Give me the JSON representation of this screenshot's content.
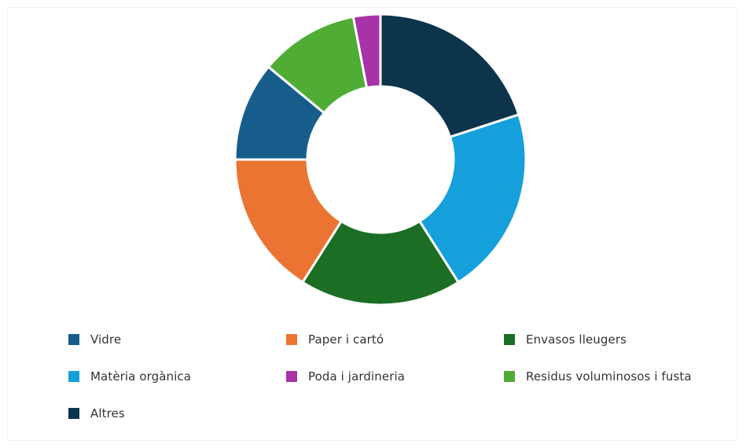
{
  "chart_data": {
    "type": "pie",
    "donut": true,
    "categories": [
      "Vidre",
      "Paper i cartó",
      "Envasos lleugers",
      "Matèria orgànica",
      "Poda i jardineria",
      "Residus voluminosos i fusta",
      "Altres"
    ],
    "values": [
      11,
      16,
      18,
      21,
      3,
      11,
      20
    ],
    "colors": [
      "#175d8c",
      "#ec7432",
      "#1b6e24",
      "#16a0db",
      "#a832a8",
      "#4fad35",
      "#0c344b"
    ],
    "draw_order": [
      "Altres",
      "Matèria orgànica",
      "Envasos lleugers",
      "Paper i cartó",
      "Vidre",
      "Residus voluminosos i fusta",
      "Poda i jardineria"
    ],
    "title": "",
    "legend_position": "bottom"
  }
}
